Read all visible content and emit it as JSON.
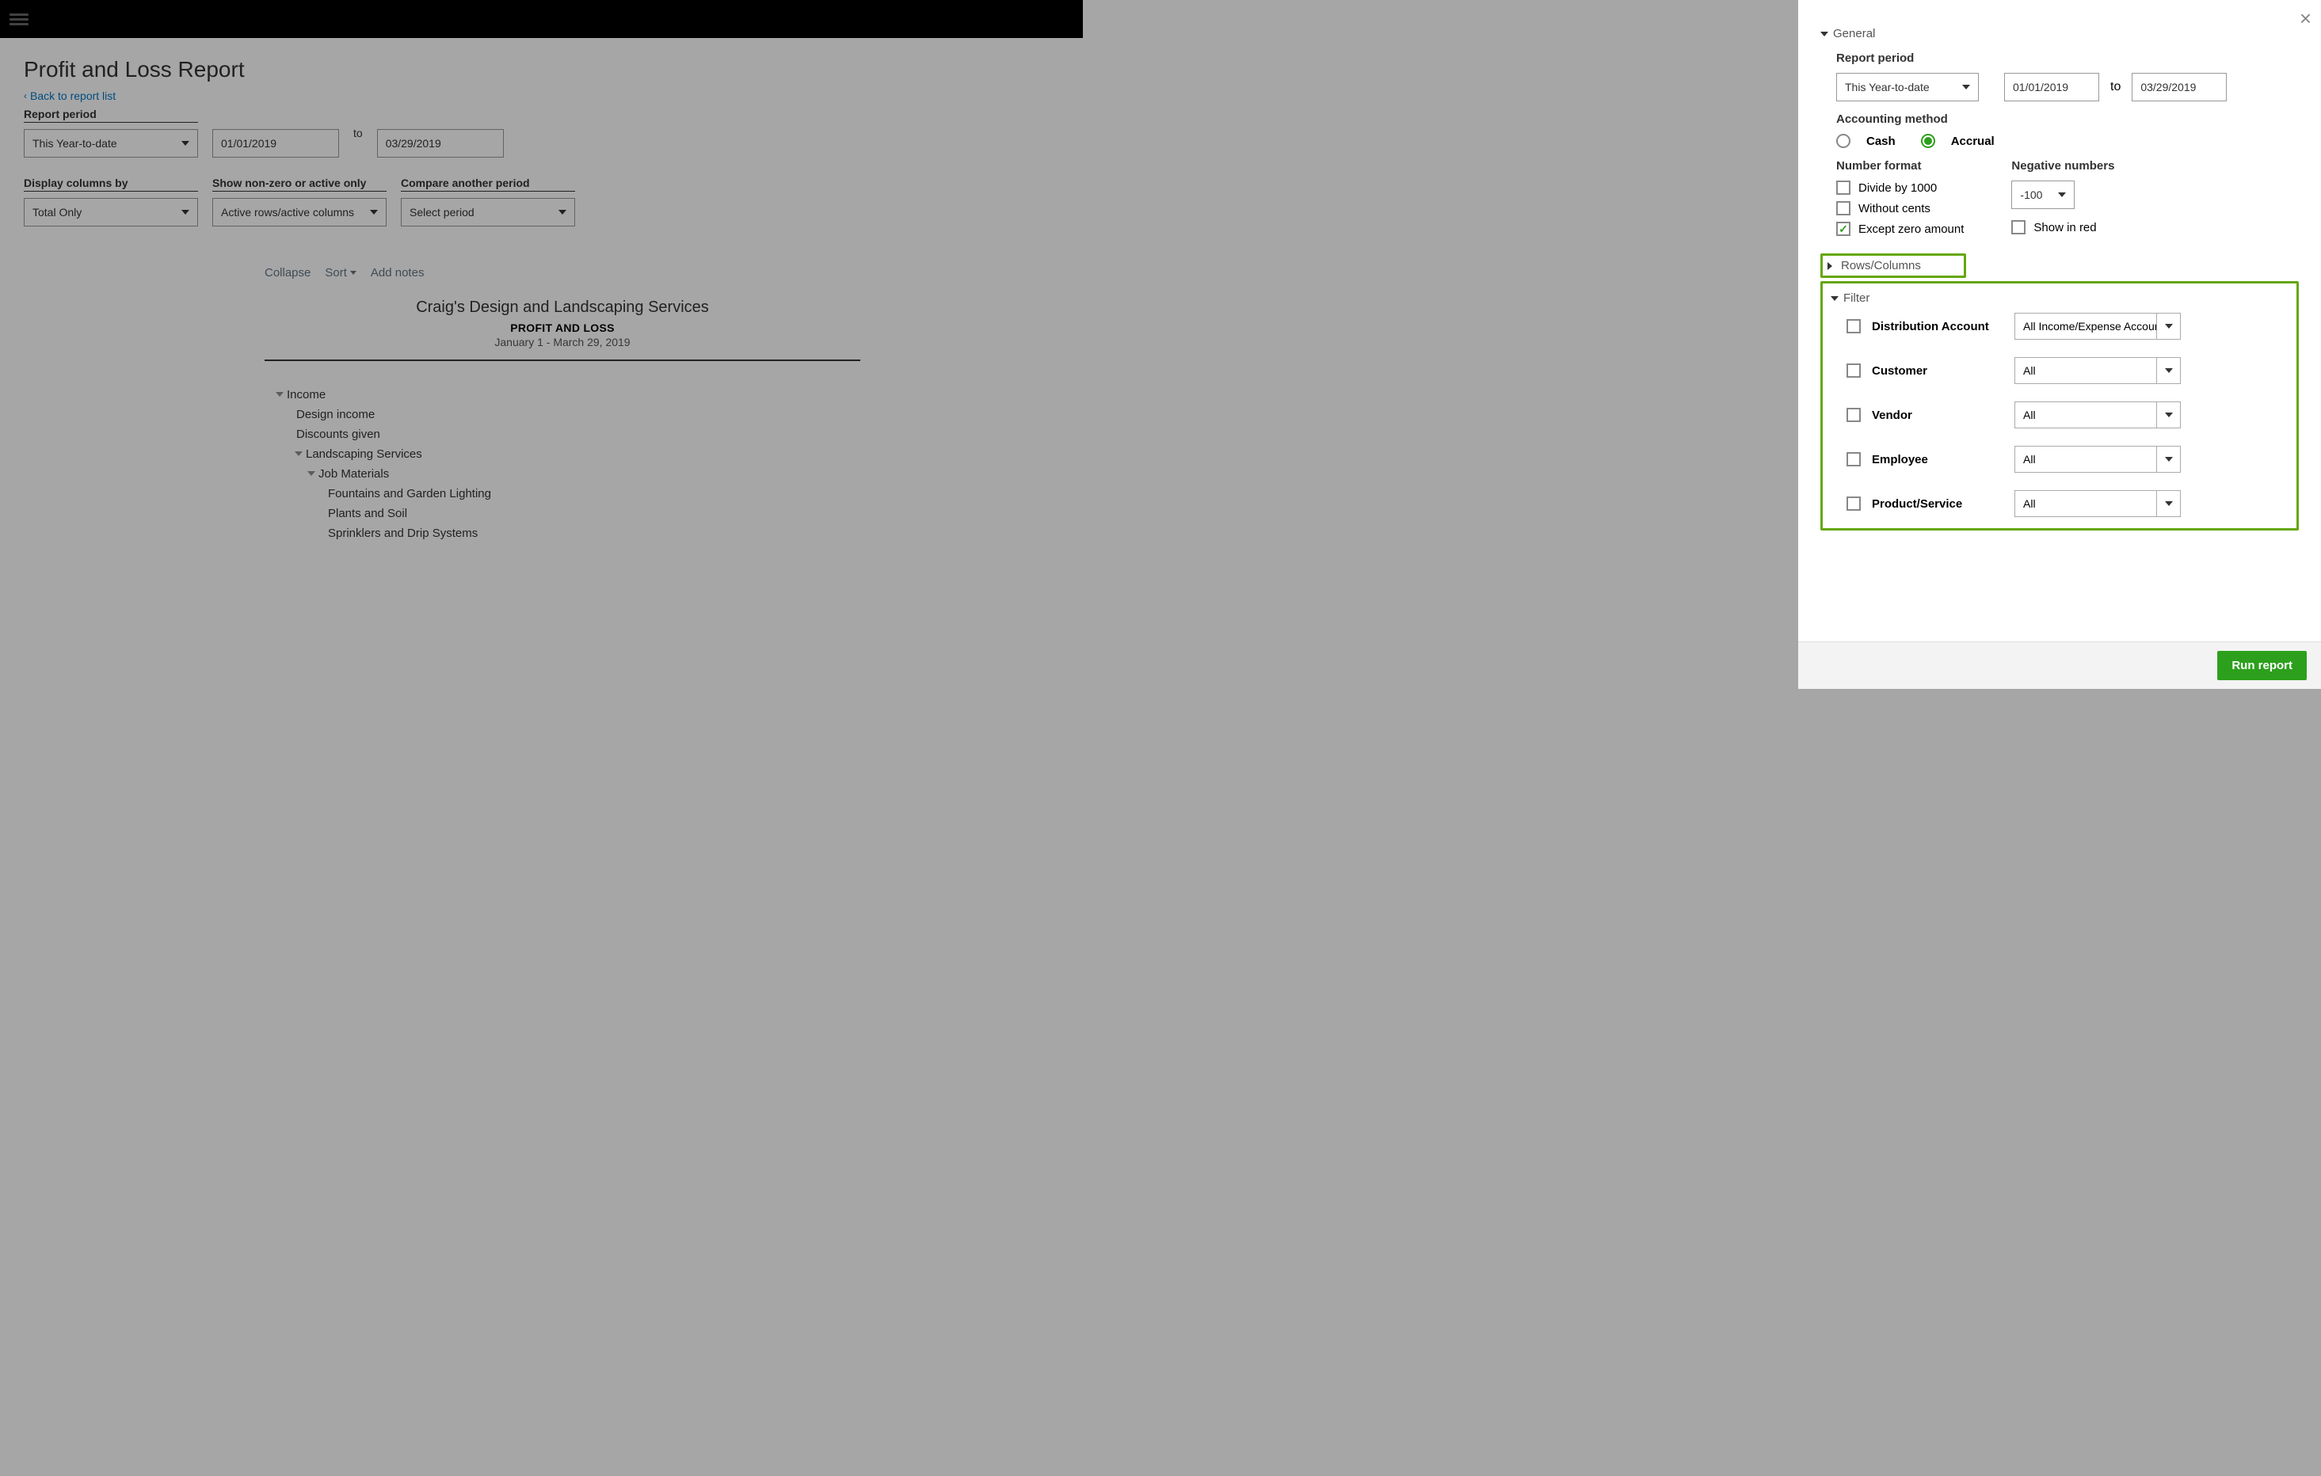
{
  "main": {
    "title": "Profit and Loss Report",
    "back": "Back to report list",
    "labels": {
      "period": "Report period",
      "to": "to",
      "display": "Display columns by",
      "nonzero": "Show non-zero or active only",
      "compare": "Compare another period"
    },
    "values": {
      "period_select": "This Year-to-date",
      "date_from": "01/01/2019",
      "date_to": "03/29/2019",
      "display": "Total Only",
      "nonzero": "Active rows/active columns",
      "compare": "Select period"
    }
  },
  "report": {
    "toolbar": {
      "collapse": "Collapse",
      "sort": "Sort",
      "notes": "Add notes"
    },
    "company": "Craig's Design and Landscaping Services",
    "name": "PROFIT AND LOSS",
    "period": "January 1 - March 29, 2019",
    "rows": [
      {
        "label": "Income",
        "indent": 1,
        "expand": true
      },
      {
        "label": "Design income",
        "indent": 2,
        "expand": false
      },
      {
        "label": "Discounts given",
        "indent": 2,
        "expand": false
      },
      {
        "label": "Landscaping Services",
        "indent": 2,
        "expand": true
      },
      {
        "label": "Job Materials",
        "indent": 3,
        "expand": true
      },
      {
        "label": "Fountains and Garden Lighting",
        "indent": 4,
        "expand": false
      },
      {
        "label": "Plants and Soil",
        "indent": 4,
        "expand": false
      },
      {
        "label": "Sprinklers and Drip Systems",
        "indent": 4,
        "expand": false
      }
    ]
  },
  "panel": {
    "sections": {
      "general": "General",
      "rows": "Rows/Columns",
      "filter": "Filter"
    },
    "general": {
      "period_label": "Report period",
      "period_select": "This Year-to-date",
      "date_from": "01/01/2019",
      "to": "to",
      "date_to": "03/29/2019",
      "acct_label": "Accounting method",
      "cash": "Cash",
      "accrual": "Accrual",
      "numfmt_label": "Number format",
      "divide1000": "Divide by 1000",
      "without_cents": "Without cents",
      "except_zero": "Except zero amount",
      "neg_label": "Negative numbers",
      "neg_select": "-100",
      "show_red": "Show in red"
    },
    "filters": [
      {
        "label": "Distribution Account",
        "value": "All Income/Expense Accounts"
      },
      {
        "label": "Customer",
        "value": "All"
      },
      {
        "label": "Vendor",
        "value": "All"
      },
      {
        "label": "Employee",
        "value": "All"
      },
      {
        "label": "Product/Service",
        "value": "All"
      }
    ],
    "run": "Run report"
  }
}
